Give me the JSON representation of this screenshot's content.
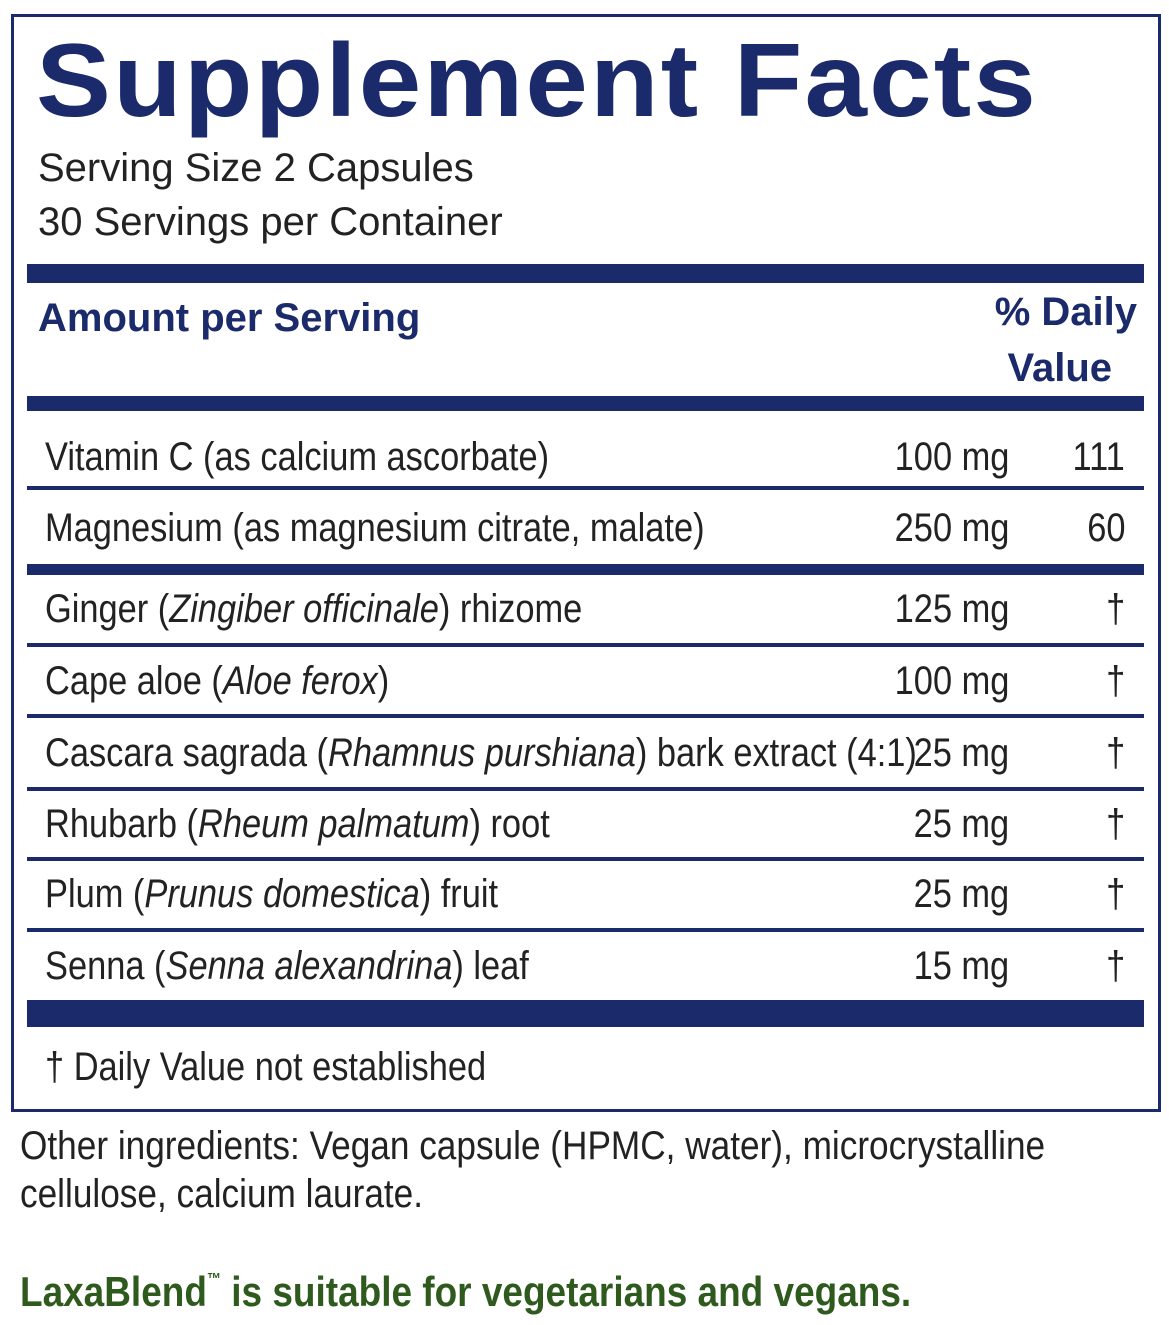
{
  "title": "Supplement Facts",
  "serving": [
    "Serving Size 2 Capsules",
    "30 Servings per Container"
  ],
  "header": {
    "amount": "Amount per Serving",
    "daily_value": [
      "% Daily",
      "Value"
    ]
  },
  "rows": [
    {
      "name": [
        "Vitamin C (as calcium ascorbate)"
      ],
      "amount": "100 mg",
      "dv": "111"
    },
    {
      "name": [
        "Magnesium (as magnesium citrate, malate)"
      ],
      "amount": "250 mg",
      "dv": "60"
    },
    {
      "name": [
        "Ginger (",
        "Zingiber officinale",
        ") rhizome"
      ],
      "amount": "125 mg",
      "dv": "†"
    },
    {
      "name": [
        "Cape aloe (",
        "Aloe ferox",
        ")"
      ],
      "amount": "100 mg",
      "dv": "†"
    },
    {
      "name": [
        "Cascara sagrada (",
        "Rhamnus purshiana",
        ") bark extract (4:1)"
      ],
      "amount": "25 mg",
      "dv": "†"
    },
    {
      "name": [
        "Rhubarb (",
        "Rheum palmatum",
        ") root"
      ],
      "amount": "25 mg",
      "dv": "†"
    },
    {
      "name": [
        "Plum (",
        "Prunus domestica",
        ") fruit"
      ],
      "amount": "25 mg",
      "dv": "†"
    },
    {
      "name": [
        "Senna (",
        "Senna alexandrina",
        ") leaf"
      ],
      "amount": "15 mg",
      "dv": "†"
    }
  ],
  "footnote": "† Daily Value not established",
  "other_ingredients": [
    "Other ingredients: Vegan capsule (HPMC, water), microcrystalline",
    "cellulose, calcium laurate."
  ],
  "note": [
    "LaxaBlend",
    "™",
    " is suitable for vegetarians and vegans."
  ]
}
